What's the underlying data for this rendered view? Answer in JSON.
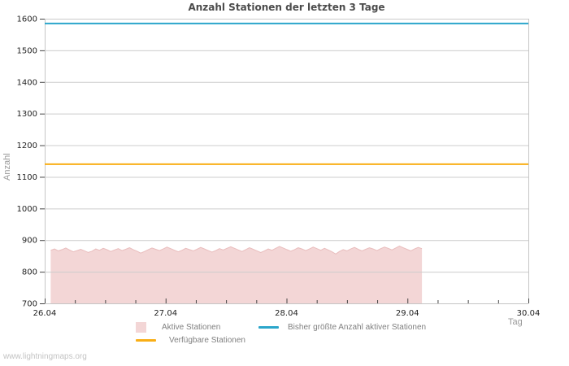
{
  "watermark": "www.lightningmaps.org",
  "colors": {
    "background": "#ffffff",
    "grid": "#cccccc",
    "axis_border": "#c5c5c5",
    "tick_mark": "#444444",
    "tick_text": "#222222",
    "title_text": "#4c4c4c",
    "legend_text": "#808080",
    "axis_name_text": "#999999",
    "area_fill": "#f3d6d6",
    "area_edge": "#e9bdbd",
    "max_line": "#2ba6cb",
    "available_line": "#f9ae16"
  },
  "chart_data": {
    "type": "area",
    "title": "Anzahl Stationen der letzten 3 Tage",
    "xlabel": "Tag",
    "ylabel": "Anzahl",
    "grid": true,
    "legend_position": "bottom",
    "x_axis": {
      "tick_labels": [
        "26.04",
        "27.04",
        "28.04",
        "29.04",
        "30.04"
      ],
      "minor_tick_step_days": 0.25
    },
    "y_axis": {
      "min": 700,
      "max": 1600,
      "tick_step": 100
    },
    "series": [
      {
        "name": "Aktive Stationen",
        "type": "area",
        "color": "#f3d6d6",
        "edge_color": "#e9bdbd",
        "x_start_days": 0.05,
        "x_end_days": 3.12,
        "values": [
          868,
          872,
          866,
          870,
          875,
          869,
          863,
          867,
          871,
          866,
          861,
          865,
          872,
          868,
          874,
          870,
          864,
          869,
          873,
          867,
          871,
          876,
          870,
          865,
          859,
          864,
          870,
          875,
          871,
          867,
          872,
          878,
          873,
          868,
          863,
          868,
          874,
          870,
          866,
          871,
          877,
          872,
          867,
          862,
          867,
          873,
          869,
          874,
          879,
          874,
          869,
          864,
          870,
          876,
          871,
          866,
          861,
          866,
          872,
          868,
          874,
          880,
          875,
          870,
          865,
          870,
          876,
          872,
          867,
          872,
          878,
          873,
          868,
          874,
          869,
          863,
          856,
          864,
          870,
          866,
          872,
          877,
          871,
          866,
          871,
          876,
          872,
          867,
          873,
          878,
          874,
          869,
          875,
          881,
          876,
          871,
          866,
          872,
          877,
          873
        ]
      },
      {
        "name": "Bisher größte Anzahl aktiver Stationen",
        "type": "line",
        "color": "#2ba6cb",
        "value": 1585
      },
      {
        "name": "Verfügbare Stationen",
        "type": "line",
        "color": "#f9ae16",
        "value": 1140
      }
    ]
  }
}
